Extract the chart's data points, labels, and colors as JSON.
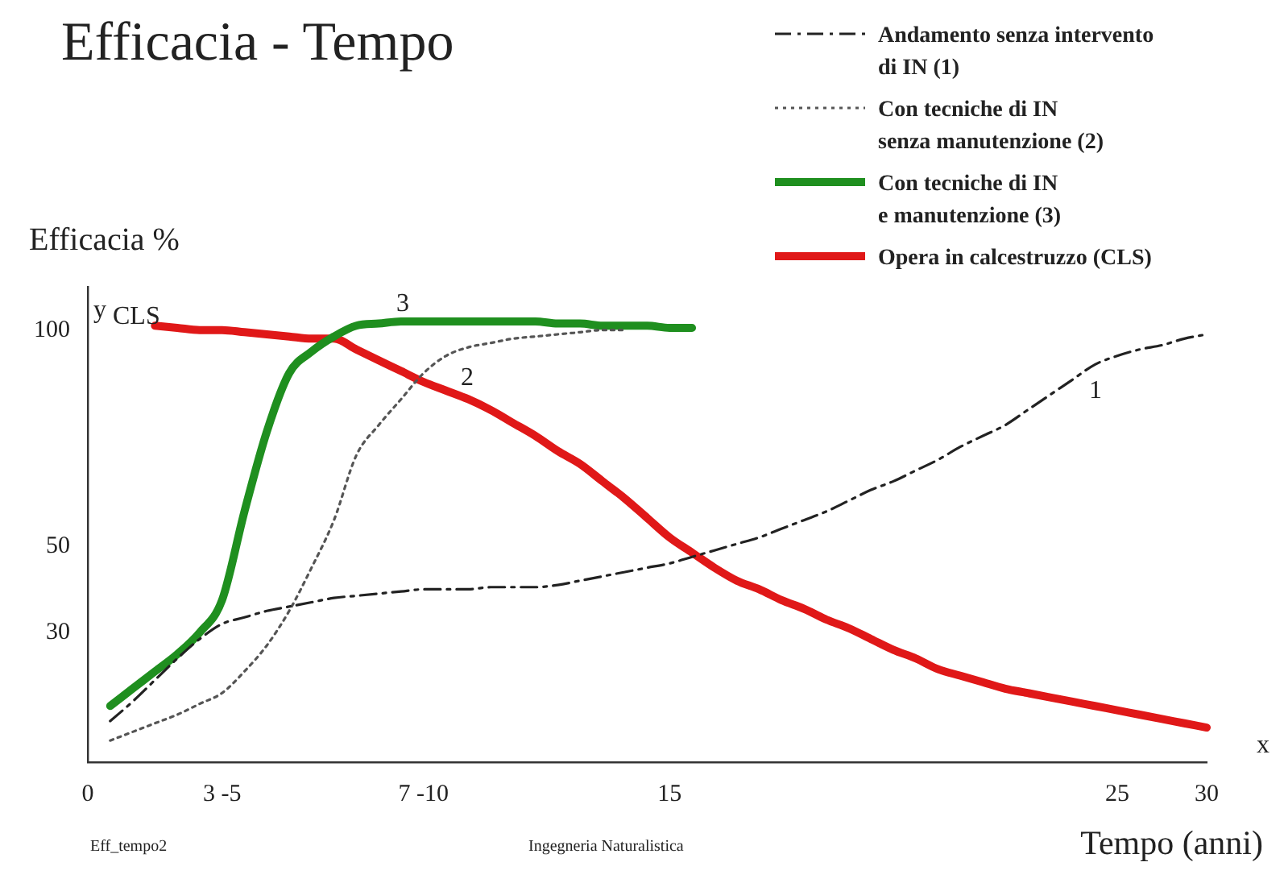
{
  "chart_data": {
    "type": "line",
    "title": "Efficacia - Tempo",
    "ylabel": "Efficacia %",
    "xlabel": "Tempo (anni)",
    "categories": [
      "0",
      null,
      null,
      null,
      null,
      null,
      "3 -5",
      null,
      null,
      null,
      null,
      null,
      null,
      null,
      null,
      "7 -10",
      null,
      null,
      null,
      null,
      null,
      null,
      null,
      null,
      null,
      null,
      "15",
      null,
      null,
      null,
      null,
      null,
      null,
      null,
      null,
      null,
      null,
      null,
      null,
      null,
      null,
      null,
      null,
      null,
      null,
      null,
      "25",
      null,
      null,
      null,
      "30"
    ],
    "ylim": [
      0,
      110
    ],
    "yticks": [
      30,
      50,
      100
    ],
    "grid": false,
    "legend": "top right",
    "marker": "none",
    "series": [
      {
        "name": "Andamento senza intervento\ndi IN (1)",
        "color": "#222222",
        "line_style": "dashdot",
        "values": [
          null,
          9.5,
          14,
          19,
          24,
          28.5,
          32,
          33.5,
          35,
          36,
          37,
          38,
          38.5,
          39,
          39.5,
          40,
          40,
          40,
          40.5,
          40.5,
          40.5,
          41,
          42,
          43,
          44,
          45,
          46,
          47.5,
          49,
          50.5,
          52,
          54,
          56,
          58,
          60.5,
          63,
          65,
          67.5,
          70,
          73,
          75.5,
          78,
          81.5,
          85,
          88.5,
          92,
          94,
          95.5,
          96.5,
          98,
          99
        ]
      },
      {
        "name": "Con tecniche di IN\nsenza manutenzione (2)",
        "color": "#555555",
        "line_style": "dotted",
        "values": [
          null,
          5,
          7,
          9,
          11,
          13.5,
          16,
          21,
          27,
          35,
          45,
          56,
          71,
          78,
          84,
          90,
          94,
          96,
          97,
          98,
          98.5,
          99,
          99.5,
          100,
          100,
          null,
          null,
          null,
          null,
          null,
          null,
          null,
          null,
          null,
          null,
          null,
          null,
          null,
          null,
          null,
          null,
          null,
          null,
          null,
          null,
          null,
          null,
          null,
          null,
          null,
          null
        ]
      },
      {
        "name": "Con tecniche di IN\ne manutenzione (3)",
        "color": "#1f8f1f",
        "line_style": "solid",
        "values": [
          null,
          13,
          17,
          21,
          25,
          30,
          37.5,
          58,
          76.5,
          90,
          95,
          98.5,
          101,
          101.5,
          102,
          102,
          102,
          102,
          102,
          102,
          102,
          101.5,
          101.5,
          101,
          101,
          101,
          100.5,
          100.5,
          null,
          null,
          null,
          null,
          null,
          null,
          null,
          null,
          null,
          null,
          null,
          null,
          null,
          null,
          null,
          null,
          null,
          null,
          null,
          null,
          null,
          null,
          null
        ]
      },
      {
        "name": "Opera in calcestruzzo (CLS)",
        "color": "#e01818",
        "line_style": "solid",
        "values": [
          null,
          null,
          null,
          101,
          100.5,
          100,
          100,
          99.5,
          99,
          98.5,
          98,
          98,
          95.5,
          93,
          90.5,
          88,
          86,
          84,
          81.5,
          78.5,
          75.5,
          72,
          69,
          65,
          61,
          56.5,
          52,
          48.5,
          45,
          42,
          40,
          37.5,
          35.5,
          33,
          31,
          28.5,
          26,
          24,
          21.5,
          20,
          18.5,
          17,
          16,
          15,
          14,
          13,
          12,
          11,
          10,
          9,
          8
        ]
      }
    ],
    "annotations": [
      "CLS",
      "3",
      "2",
      "1",
      "y",
      "x",
      "Eff_tempo2",
      "Ingegneria Naturalistica"
    ]
  }
}
